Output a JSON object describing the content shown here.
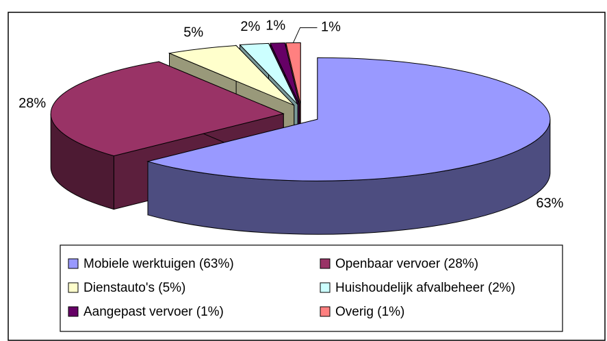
{
  "chart_data": {
    "type": "pie",
    "categories": [
      "Mobiele werktuigen (63%)",
      "Openbaar vervoer (28%)",
      "Dienstauto's (5%)",
      "Huishoudelijk afvalbeheer (2%)",
      "Aangepast vervoer (1%)",
      "Overig (1%)"
    ],
    "values": [
      63,
      28,
      5,
      2,
      1,
      1
    ],
    "value_labels": [
      "63%",
      "28%",
      "5%",
      "2%",
      "1%",
      "1%"
    ],
    "colors": [
      "#9999ff",
      "#993366",
      "#ffffcc",
      "#ccffff",
      "#660066",
      "#ff8080"
    ],
    "legend": "bottom"
  }
}
